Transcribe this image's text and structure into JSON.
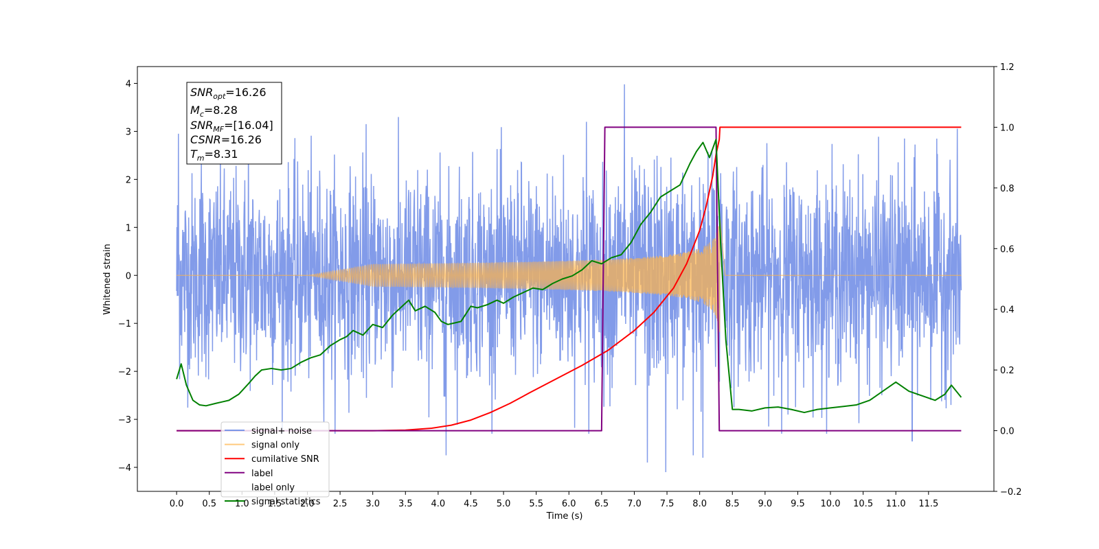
{
  "chart_data": {
    "type": "line",
    "xlabel": "Time (s)",
    "ylabel": "Whitened strain",
    "xlim": [
      -0.6,
      12.5
    ],
    "ylim_left": [
      -4.5,
      4.35
    ],
    "ylim_right": [
      -0.2,
      1.2
    ],
    "x_ticks": [
      "0.0",
      "0.5",
      "1.0",
      "1.5",
      "2.0",
      "2.5",
      "3.0",
      "3.5",
      "4.0",
      "4.5",
      "5.0",
      "5.5",
      "6.0",
      "6.5",
      "7.0",
      "7.5",
      "8.0",
      "8.5",
      "9.0",
      "9.5",
      "10.0",
      "10.5",
      "11.0",
      "11.5"
    ],
    "y_ticks_left": [
      "4",
      "3",
      "2",
      "1",
      "0",
      "−1",
      "−2",
      "−3",
      "−4"
    ],
    "y_ticks_right": [
      "1.2",
      "1.0",
      "0.8",
      "0.6",
      "0.4",
      "0.2",
      "0.0",
      "−0.2"
    ],
    "legend_placement": "lower-left",
    "annotation": [
      {
        "main": "SNR",
        "sub": "opt",
        "value": "=16.26"
      },
      {
        "main": "M",
        "sub": "c",
        "value": "=8.28"
      },
      {
        "main": "SNR",
        "sub": "MF",
        "value": "=[16.04]"
      },
      {
        "main": "CSNR",
        "sub": "",
        "value": "=16.26"
      },
      {
        "main": "T",
        "sub": "m",
        "value": "=8.31"
      }
    ],
    "noise_params": {
      "time_range": [
        0,
        12.0
      ],
      "std": 1.05,
      "spikes": [
        [
          0.03,
          2.95
        ],
        [
          1.1,
          3.05
        ],
        [
          4.12,
          -3.75
        ],
        [
          6.85,
          3.98
        ],
        [
          7.48,
          -4.1
        ],
        [
          7.2,
          -3.9
        ],
        [
          7.9,
          -3.75
        ],
        [
          8.05,
          -3.8
        ],
        [
          9.35,
          -2.9
        ],
        [
          11.25,
          -3.45
        ],
        [
          2.9,
          3.15
        ],
        [
          6.27,
          3.2
        ],
        [
          0.38,
          2.35
        ]
      ]
    },
    "chirp_params": {
      "start": 3.0,
      "end": 8.31,
      "peak_amplitude": 1.3
    },
    "series": [
      {
        "name": "signal+ noise",
        "color": "#7b96e8",
        "axis": "left"
      },
      {
        "name": "signal only",
        "color": "#ffb347",
        "axis": "left"
      },
      {
        "name": "cumilative SNR",
        "color": "#ff0000",
        "axis": "right",
        "x": [
          0,
          3.0,
          3.5,
          3.9,
          4.2,
          4.5,
          4.8,
          5.1,
          5.4,
          5.8,
          6.2,
          6.6,
          7.0,
          7.3,
          7.6,
          7.8,
          8.0,
          8.1,
          8.2,
          8.25,
          8.3,
          8.31,
          12.0
        ],
        "values": [
          0,
          0,
          0.002,
          0.008,
          0.018,
          0.035,
          0.06,
          0.09,
          0.125,
          0.17,
          0.215,
          0.265,
          0.33,
          0.39,
          0.47,
          0.55,
          0.66,
          0.74,
          0.84,
          0.91,
          0.96,
          1.0,
          1.0
        ]
      },
      {
        "name": "label",
        "color": "#800080",
        "axis": "right",
        "x": [
          0,
          6.5,
          6.55,
          8.25,
          8.3,
          12.0
        ],
        "values": [
          0,
          0,
          1,
          1,
          0,
          0
        ]
      },
      {
        "name": "label only",
        "color": "#ffffff",
        "axis": "right"
      },
      {
        "name": "signal statistics",
        "color": "#008000",
        "axis": "right",
        "x": [
          0,
          0.07,
          0.15,
          0.25,
          0.35,
          0.45,
          0.6,
          0.7,
          0.8,
          0.95,
          1.1,
          1.2,
          1.3,
          1.45,
          1.6,
          1.75,
          1.9,
          2.05,
          2.2,
          2.35,
          2.5,
          2.6,
          2.7,
          2.85,
          3.0,
          3.15,
          3.3,
          3.45,
          3.55,
          3.65,
          3.8,
          3.95,
          4.05,
          4.15,
          4.25,
          4.35,
          4.5,
          4.6,
          4.75,
          4.9,
          5.0,
          5.15,
          5.3,
          5.45,
          5.6,
          5.75,
          5.9,
          6.05,
          6.2,
          6.35,
          6.5,
          6.65,
          6.8,
          6.95,
          7.1,
          7.25,
          7.4,
          7.55,
          7.7,
          7.85,
          7.95,
          8.05,
          8.15,
          8.25,
          8.32,
          8.4,
          8.5,
          8.6,
          8.8,
          9.0,
          9.2,
          9.4,
          9.6,
          9.8,
          10.0,
          10.2,
          10.4,
          10.6,
          10.8,
          11.0,
          11.2,
          11.4,
          11.6,
          11.75,
          11.85,
          12.0
        ],
        "values": [
          0.17,
          0.22,
          0.15,
          0.1,
          0.085,
          0.082,
          0.09,
          0.095,
          0.1,
          0.12,
          0.155,
          0.18,
          0.2,
          0.205,
          0.2,
          0.205,
          0.225,
          0.24,
          0.25,
          0.28,
          0.3,
          0.31,
          0.33,
          0.315,
          0.35,
          0.34,
          0.38,
          0.41,
          0.43,
          0.395,
          0.41,
          0.39,
          0.36,
          0.35,
          0.355,
          0.36,
          0.41,
          0.405,
          0.415,
          0.43,
          0.42,
          0.44,
          0.455,
          0.47,
          0.465,
          0.485,
          0.5,
          0.51,
          0.53,
          0.56,
          0.55,
          0.57,
          0.58,
          0.62,
          0.68,
          0.72,
          0.77,
          0.79,
          0.81,
          0.88,
          0.92,
          0.95,
          0.9,
          0.96,
          0.62,
          0.3,
          0.07,
          0.07,
          0.065,
          0.075,
          0.078,
          0.07,
          0.06,
          0.07,
          0.075,
          0.08,
          0.085,
          0.1,
          0.13,
          0.16,
          0.13,
          0.115,
          0.1,
          0.12,
          0.15,
          0.11
        ]
      }
    ]
  }
}
